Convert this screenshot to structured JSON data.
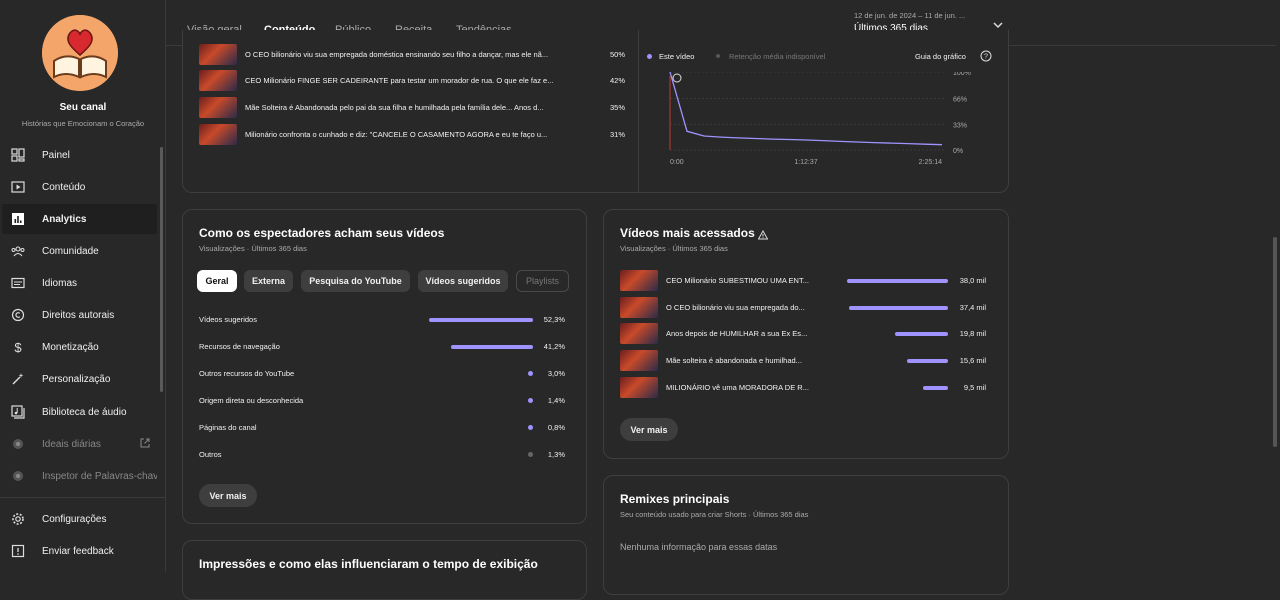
{
  "channel": {
    "name": "Seu canal",
    "subtitle": "Histórias que Emocionam o Coração"
  },
  "sidebar": {
    "items": [
      {
        "label": "Painel",
        "icon": "dashboard-icon"
      },
      {
        "label": "Conteúdo",
        "icon": "content-icon"
      },
      {
        "label": "Analytics",
        "icon": "analytics-icon",
        "active": true
      },
      {
        "label": "Comunidade",
        "icon": "community-icon"
      },
      {
        "label": "Idiomas",
        "icon": "subtitles-icon"
      },
      {
        "label": "Direitos autorais",
        "icon": "copyright-icon"
      },
      {
        "label": "Monetização",
        "icon": "dollar-icon"
      },
      {
        "label": "Personalização",
        "icon": "magic-wand-icon"
      },
      {
        "label": "Biblioteca de áudio",
        "icon": "audio-library-icon"
      },
      {
        "label": "Ideais diárias",
        "icon": "external-tool-icon",
        "dim": true
      },
      {
        "label": "Inspetor de Palavras-chav",
        "icon": "external-tool-icon",
        "dim": true
      }
    ],
    "bottom": [
      {
        "label": "Configurações",
        "icon": "gear-icon"
      },
      {
        "label": "Enviar feedback",
        "icon": "feedback-icon"
      }
    ]
  },
  "header": {
    "tabs": [
      "Visão geral",
      "Conteúdo",
      "Público",
      "Receita",
      "Tendências"
    ],
    "active_tab": "Conteúdo",
    "date_range": "12 de jun. de 2024 – 11 de jun. ...",
    "period": "Últimos 365 dias"
  },
  "retention_card": {
    "rows": [
      {
        "title": "O CEO bilionário viu sua empregada doméstica ensinando seu filho a dançar, mas ele nã...",
        "value": "50%"
      },
      {
        "title": "CEO Milionário FINGE SER CADEIRANTE para testar um morador de rua. O que ele faz e...",
        "value": "42%"
      },
      {
        "title": "Mãe Solteira é Abandonada pelo pai da sua filha e humilhada pela família dele... Anos d...",
        "value": "35%"
      },
      {
        "title": "Milionário confronta o cunhado e diz: \"CANCELE O CASAMENTO AGORA e eu te faço u...",
        "value": "31%"
      }
    ],
    "legend_this": "Este vídeo",
    "legend_avg": "Retenção média indisponível",
    "guide": "Guia do gráfico",
    "y_ticks": [
      "100%",
      "66%",
      "33%",
      "0%"
    ],
    "x_ticks": [
      "0:00",
      "1:12:37",
      "2:25:14"
    ]
  },
  "chart_data": {
    "type": "line",
    "series": [
      {
        "name": "Este vídeo",
        "values": [
          100,
          24,
          18,
          16.5,
          15.5,
          14.8,
          14,
          13.4,
          12.8,
          12,
          11,
          10.3,
          9.5,
          8.8,
          8.2,
          7.5,
          6.8
        ]
      }
    ],
    "x_range": [
      "0:00",
      "2:25:14"
    ],
    "ylim": [
      0,
      100
    ],
    "y_ticks": [
      "100%",
      "66%",
      "33%",
      "0%"
    ]
  },
  "discovery_card": {
    "title": "Como os espectadores acham seus vídeos",
    "subtitle": "Visualizações · Últimos 365 dias",
    "chips": [
      "Geral",
      "Externa",
      "Pesquisa do YouTube",
      "Vídeos sugeridos",
      "Playlists"
    ],
    "rows": [
      {
        "label": "Vídeos sugeridos",
        "value": "52,3%",
        "pct": 52.3
      },
      {
        "label": "Recursos de navegação",
        "value": "41,2%",
        "pct": 41.2
      },
      {
        "label": "Outros recursos do YouTube",
        "value": "3,0%",
        "pct": 3.0
      },
      {
        "label": "Origem direta ou desconhecida",
        "value": "1,4%",
        "pct": 1.4
      },
      {
        "label": "Páginas do canal",
        "value": "0,8%",
        "pct": 0.8
      },
      {
        "label": "Outros",
        "value": "1,3%",
        "pct": 1.3,
        "grey": true
      }
    ],
    "more": "Ver mais"
  },
  "top_videos_card": {
    "title": "Vídeos mais acessados",
    "subtitle": "Visualizações · Últimos 365 dias",
    "rows": [
      {
        "title": "CEO Milionário SUBESTIMOU UMA ENT...",
        "value": "38,0 mil",
        "views": 38.0
      },
      {
        "title": "O CEO bilionário viu sua empregada do...",
        "value": "37,4 mil",
        "views": 37.4
      },
      {
        "title": "Anos depois de HUMILHAR a sua Ex Es...",
        "value": "19,8 mil",
        "views": 19.8
      },
      {
        "title": "Mãe solteira é abandonada e humilhad...",
        "value": "15,6 mil",
        "views": 15.6
      },
      {
        "title": "MILIONÁRIO vê uma MORADORA DE R...",
        "value": "9,5 mil",
        "views": 9.5
      }
    ],
    "more": "Ver mais"
  },
  "remix_card": {
    "title": "Remixes principais",
    "subtitle": "Seu conteúdo usado para criar Shorts · Últimos 365 dias",
    "empty": "Nenhuma informação para essas datas"
  },
  "impressions_card": {
    "title": "Impressões e como elas influenciaram o tempo de exibição"
  },
  "colors": {
    "accent": "#9f94ff",
    "background": "#282828",
    "card_border": "#3e3e3e"
  }
}
